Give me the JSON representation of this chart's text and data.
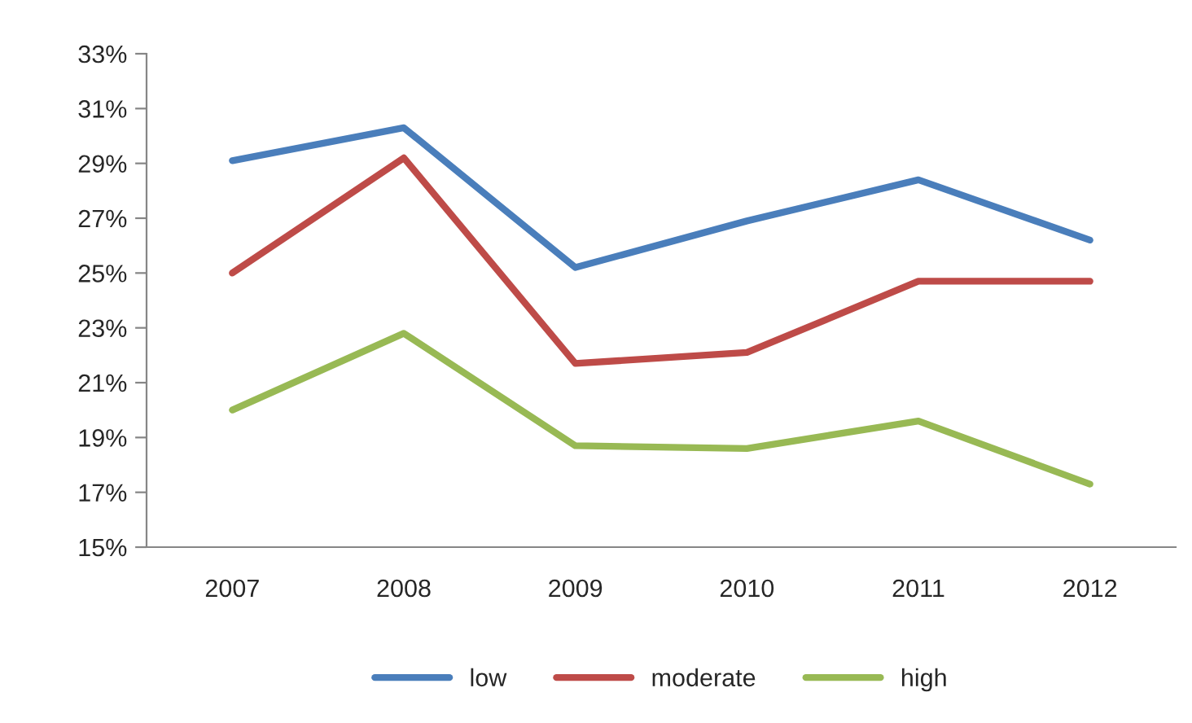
{
  "chart_data": {
    "type": "line",
    "categories": [
      "2007",
      "2008",
      "2009",
      "2010",
      "2011",
      "2012"
    ],
    "series": [
      {
        "name": "low",
        "color": "#4a7ebb",
        "values": [
          29.1,
          30.3,
          25.2,
          26.9,
          28.4,
          26.2
        ]
      },
      {
        "name": "moderate",
        "color": "#be4b48",
        "values": [
          25.0,
          29.2,
          21.7,
          22.1,
          24.7,
          24.7
        ]
      },
      {
        "name": "high",
        "color": "#98b954",
        "values": [
          20.0,
          22.8,
          18.7,
          18.6,
          19.6,
          17.3
        ]
      }
    ],
    "ylim": [
      15,
      33
    ],
    "yticks": [
      {
        "value": 15,
        "label": "15%"
      },
      {
        "value": 17,
        "label": "17%"
      },
      {
        "value": 19,
        "label": "19%"
      },
      {
        "value": 21,
        "label": "21%"
      },
      {
        "value": 23,
        "label": "23%"
      },
      {
        "value": 25,
        "label": "25%"
      },
      {
        "value": 27,
        "label": "27%"
      },
      {
        "value": 29,
        "label": "29%"
      },
      {
        "value": 31,
        "label": "31%"
      },
      {
        "value": 33,
        "label": "33%"
      }
    ],
    "grid": false,
    "legend": "bottom",
    "marker": "none",
    "line_style": "solid"
  }
}
